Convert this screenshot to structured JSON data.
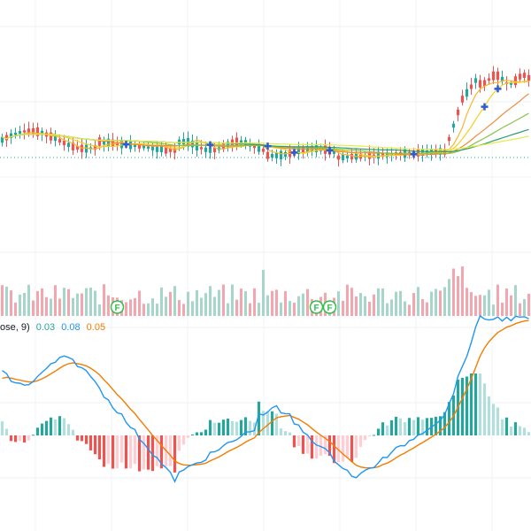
{
  "chart_data": {
    "type": "line",
    "panes": {
      "price": {
        "type": "candlestick",
        "up_color": "#26a69a",
        "down_color": "#ef5350",
        "ma_colors": [
          "#f7b731",
          "#f5d020",
          "#f28b3c",
          "#8bc34a",
          "#2e9e6e",
          "#e6e94a"
        ],
        "signal_marker_color": "#2d5bd1"
      },
      "volume": {
        "type": "bar",
        "up_color": "#a5d6c9",
        "down_color": "#f3a6ad",
        "event_markers": [
          {
            "index": 26,
            "label": "F"
          },
          {
            "index": 71,
            "label": "F"
          },
          {
            "index": 74,
            "label": "F"
          }
        ],
        "event_marker_color": "#2fbf4a"
      },
      "macd": {
        "type": "histogram+line",
        "legend_prefix": "ose, 9)",
        "legend_values": [
          {
            "value": "0.03",
            "color": "#26a69a"
          },
          {
            "value": "0.08",
            "color": "#2196f3"
          },
          {
            "value": "0.05",
            "color": "#f57c00"
          }
        ],
        "macd_color": "#2196f3",
        "signal_color": "#f57c00",
        "hist_pos_strong": "#26a69a",
        "hist_pos_weak": "#b2dfdb",
        "hist_neg_strong": "#ef5350",
        "hist_neg_weak": "#ffcdd2"
      }
    }
  }
}
